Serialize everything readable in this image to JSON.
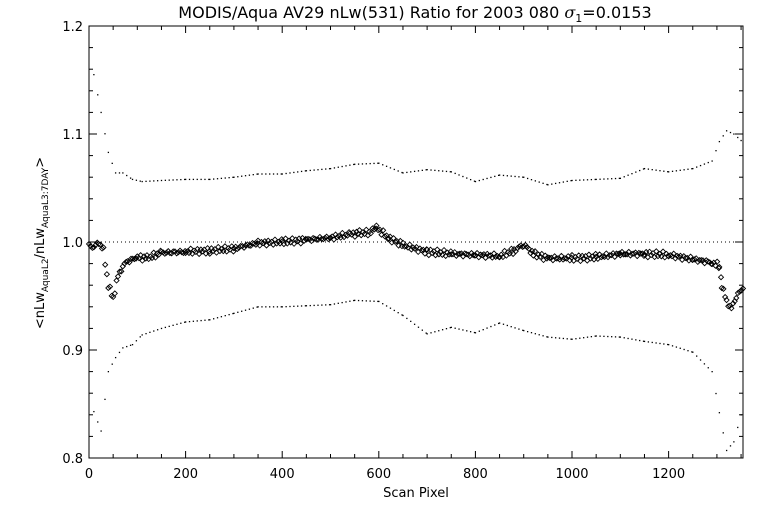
{
  "chart_data": {
    "type": "scatter",
    "title_parts": {
      "prefix": "MODIS/Aqua AV29 nLw(531) Ratio for 2003 080 ",
      "sigma": "σ",
      "sigma_sub": "1",
      "suffix": "=0.0153"
    },
    "xlabel": "Scan Pixel",
    "ylabel_parts": {
      "a": "<nLw",
      "a_sub": "AquaL2",
      "b": "/nLw",
      "b_sub": "AquaL3:7DAY",
      "c": ">"
    },
    "xlim": [
      0,
      1354
    ],
    "ylim": [
      0.8,
      1.2
    ],
    "x_ticks": [
      {
        "value": 0,
        "label": "0"
      },
      {
        "value": 200,
        "label": "200"
      },
      {
        "value": 400,
        "label": "400"
      },
      {
        "value": 600,
        "label": "600"
      },
      {
        "value": 800,
        "label": "800"
      },
      {
        "value": 1000,
        "label": "1000"
      },
      {
        "value": 1200,
        "label": "1200"
      }
    ],
    "y_ticks": [
      {
        "value": 0.8,
        "label": "0.8"
      },
      {
        "value": 0.9,
        "label": "0.9"
      },
      {
        "value": 1.0,
        "label": "1.0"
      },
      {
        "value": 1.1,
        "label": "1.1"
      },
      {
        "value": 1.2,
        "label": "1.2"
      }
    ],
    "reference_line": 1.0,
    "grid": false,
    "series": [
      {
        "role": "mean",
        "marker": "diamond",
        "x": [
          0,
          10,
          20,
          30,
          40,
          50,
          60,
          70,
          80,
          100,
          120,
          150,
          200,
          250,
          300,
          350,
          400,
          450,
          500,
          540,
          560,
          580,
          595,
          620,
          650,
          700,
          750,
          800,
          850,
          880,
          900,
          920,
          950,
          1000,
          1050,
          1100,
          1150,
          1200,
          1250,
          1290,
          1305,
          1310,
          1320,
          1330,
          1340,
          1354
        ],
        "y": [
          0.997,
          0.995,
          1.0,
          0.992,
          0.96,
          0.948,
          0.968,
          0.978,
          0.982,
          0.986,
          0.985,
          0.99,
          0.991,
          0.992,
          0.994,
          0.999,
          1.0,
          1.002,
          1.004,
          1.007,
          1.008,
          1.009,
          1.013,
          1.004,
          0.997,
          0.991,
          0.989,
          0.988,
          0.987,
          0.992,
          0.998,
          0.989,
          0.985,
          0.985,
          0.986,
          0.989,
          0.989,
          0.988,
          0.984,
          0.981,
          0.978,
          0.96,
          0.945,
          0.938,
          0.95,
          0.957
        ]
      },
      {
        "role": "upper-envelope",
        "marker": "dot",
        "x": [
          10,
          25,
          40,
          55,
          70,
          90,
          110,
          150,
          200,
          250,
          300,
          350,
          400,
          450,
          500,
          550,
          600,
          650,
          700,
          750,
          800,
          850,
          900,
          950,
          1000,
          1050,
          1100,
          1150,
          1200,
          1250,
          1290,
          1305,
          1320,
          1335,
          1350
        ],
        "y": [
          1.155,
          1.12,
          1.083,
          1.064,
          1.064,
          1.058,
          1.056,
          1.057,
          1.058,
          1.058,
          1.06,
          1.063,
          1.063,
          1.066,
          1.068,
          1.072,
          1.073,
          1.064,
          1.067,
          1.065,
          1.056,
          1.062,
          1.06,
          1.053,
          1.057,
          1.058,
          1.059,
          1.068,
          1.065,
          1.068,
          1.075,
          1.093,
          1.103,
          1.1,
          1.094
        ]
      },
      {
        "role": "lower-envelope",
        "marker": "dot",
        "x": [
          10,
          25,
          40,
          55,
          70,
          90,
          110,
          150,
          200,
          250,
          300,
          350,
          400,
          450,
          500,
          550,
          600,
          650,
          700,
          750,
          800,
          850,
          900,
          950,
          1000,
          1050,
          1100,
          1150,
          1200,
          1250,
          1290,
          1305,
          1320,
          1335,
          1350
        ],
        "y": [
          0.843,
          0.825,
          0.88,
          0.893,
          0.902,
          0.905,
          0.914,
          0.92,
          0.926,
          0.928,
          0.934,
          0.94,
          0.94,
          0.941,
          0.942,
          0.946,
          0.945,
          0.932,
          0.915,
          0.921,
          0.916,
          0.925,
          0.918,
          0.912,
          0.91,
          0.913,
          0.912,
          0.908,
          0.905,
          0.898,
          0.88,
          0.842,
          0.807,
          0.815,
          0.84
        ]
      }
    ]
  }
}
